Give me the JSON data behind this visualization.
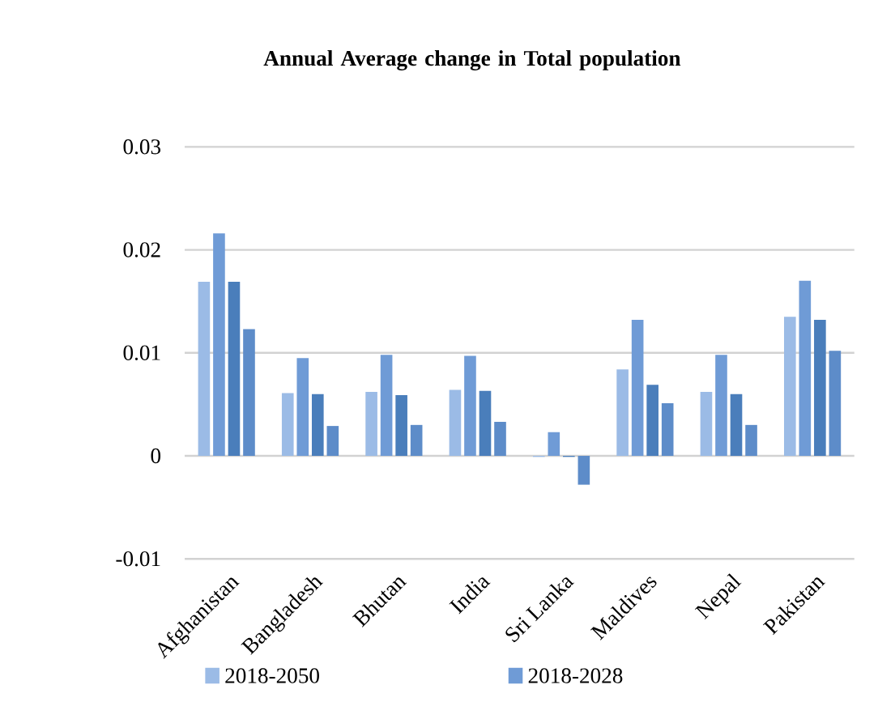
{
  "chart_data": {
    "type": "bar",
    "title": "Annual Average change in Total population",
    "categories": [
      "Afghanistan",
      "Bangladesh",
      "Bhutan",
      "India",
      "Sri Lanka",
      "Maldives",
      "Nepal",
      "Pakistan"
    ],
    "series": [
      {
        "name": "2018-2050",
        "color": "#9bbbe6",
        "values": [
          0.0169,
          0.0061,
          0.0062,
          0.0064,
          -0.0001,
          0.0084,
          0.0062,
          0.0135
        ]
      },
      {
        "name": "2018-2028",
        "color": "#6f9bd6",
        "values": [
          0.0216,
          0.0095,
          0.0098,
          0.0097,
          0.0023,
          0.0132,
          0.0098,
          0.017
        ]
      },
      {
        "color": "#4a7ebb",
        "values": [
          0.0169,
          0.006,
          0.0059,
          0.0063,
          -0.0001,
          0.0069,
          0.006,
          0.0132
        ]
      },
      {
        "color": "#5d8cc9",
        "values": [
          0.0123,
          0.0029,
          0.003,
          0.0033,
          -0.0028,
          0.0051,
          0.003,
          0.0102
        ]
      }
    ],
    "ylim": [
      -0.01,
      0.03
    ],
    "yticks": [
      -0.01,
      0,
      0.01,
      0.02,
      0.03
    ],
    "grid": "y",
    "legend": "bottom"
  }
}
